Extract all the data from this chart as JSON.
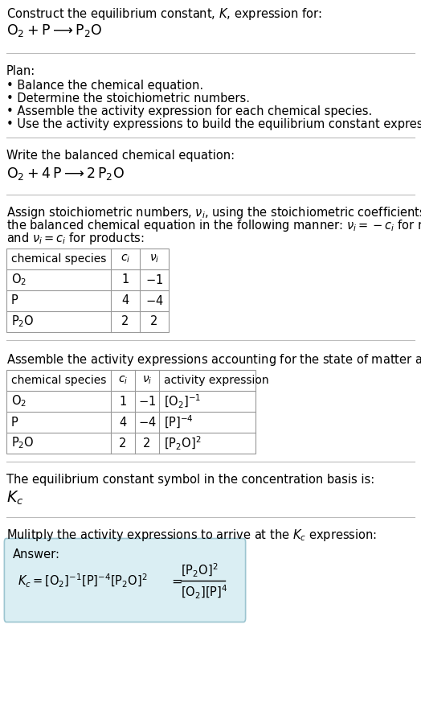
{
  "bg_color": "#ffffff",
  "text_color": "#000000",
  "fontsize": 10.5,
  "title_line1": "Construct the equilibrium constant, $K$, expression for:",
  "title_line2": "$\\mathrm{O_2 + P \\longrightarrow P_2O}$",
  "plan_header": "Plan:",
  "plan_bullets": [
    "• Balance the chemical equation.",
    "• Determine the stoichiometric numbers.",
    "• Assemble the activity expression for each chemical species.",
    "• Use the activity expressions to build the equilibrium constant expression."
  ],
  "balanced_header": "Write the balanced chemical equation:",
  "balanced_eq": "$\\mathrm{O_2 + 4\\,P \\longrightarrow 2\\,P_2O}$",
  "stoich_lines": [
    "Assign stoichiometric numbers, $\\nu_i$, using the stoichiometric coefficients, $c_i$, from",
    "the balanced chemical equation in the following manner: $\\nu_i = -c_i$ for reactants",
    "and $\\nu_i = c_i$ for products:"
  ],
  "table1_cols": [
    "chemical species",
    "$c_i$",
    "$\\nu_i$"
  ],
  "table1_rows": [
    [
      "$\\mathrm{O_2}$",
      "1",
      "$-1$"
    ],
    [
      "P",
      "4",
      "$-4$"
    ],
    [
      "$\\mathrm{P_2O}$",
      "2",
      "2"
    ]
  ],
  "activity_header": "Assemble the activity expressions accounting for the state of matter and $\\nu_i$:",
  "table2_cols": [
    "chemical species",
    "$c_i$",
    "$\\nu_i$",
    "activity expression"
  ],
  "table2_rows": [
    [
      "$\\mathrm{O_2}$",
      "1",
      "$-1$",
      "$[\\mathrm{O_2}]^{-1}$"
    ],
    [
      "P",
      "4",
      "$-4$",
      "$[\\mathrm{P}]^{-4}$"
    ],
    [
      "$\\mathrm{P_2O}$",
      "2",
      "2",
      "$[\\mathrm{P_2O}]^{2}$"
    ]
  ],
  "kc_text": "The equilibrium constant symbol in the concentration basis is:",
  "kc_symbol": "$K_c$",
  "multiply_text": "Mulitply the activity expressions to arrive at the $K_c$ expression:",
  "answer_label": "Answer:",
  "answer_box_color": "#daeef3",
  "answer_box_border": "#9cc5d0",
  "divider_color": "#bbbbbb",
  "table_border_color": "#999999"
}
